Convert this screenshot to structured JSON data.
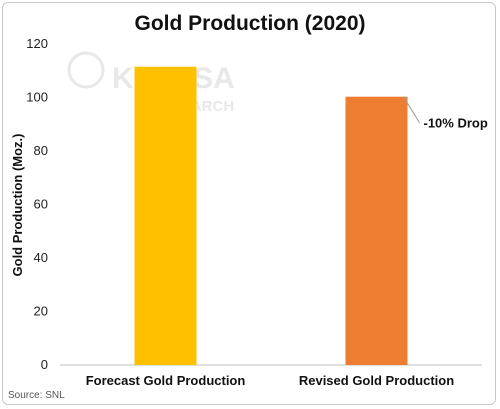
{
  "chart_data": {
    "type": "bar",
    "title": "Gold Production (2020)",
    "ylabel": "Gold Production (Moz.)",
    "xlabel": "",
    "categories": [
      "Forecast Gold Production",
      "Revised Gold Production"
    ],
    "values": [
      111.5,
      100.3
    ],
    "colors": [
      "#FFC000",
      "#ED7D31"
    ],
    "ylim": [
      0,
      120
    ],
    "yticks": [
      0,
      20,
      40,
      60,
      80,
      100,
      120
    ],
    "grid": false,
    "annotation": {
      "text": "-10% Drop",
      "target_category": "Revised Gold Production"
    },
    "source": "Source: SNL",
    "watermark": {
      "brand": "KATUSA",
      "sub": "RESEARCH"
    }
  }
}
